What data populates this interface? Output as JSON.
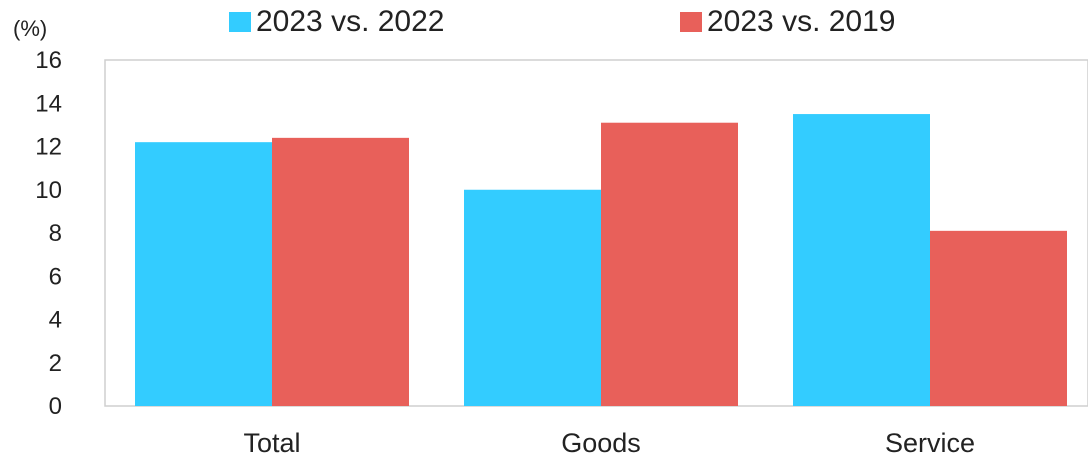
{
  "chart_data": {
    "type": "bar",
    "title": "",
    "unit_label": "(%)",
    "xlabel": "",
    "ylabel": "",
    "ylim": [
      0,
      16
    ],
    "yticks": [
      0,
      2,
      4,
      6,
      8,
      10,
      12,
      14,
      16
    ],
    "grid": false,
    "legend_position": "top",
    "categories": [
      "Total",
      "Goods",
      "Service"
    ],
    "series": [
      {
        "name": "2023 vs. 2022",
        "color": "#33ccff",
        "values": [
          12.2,
          10.0,
          13.5
        ]
      },
      {
        "name": "2023 vs. 2019",
        "color": "#e8605a",
        "values": [
          12.4,
          13.1,
          8.1
        ]
      }
    ]
  }
}
